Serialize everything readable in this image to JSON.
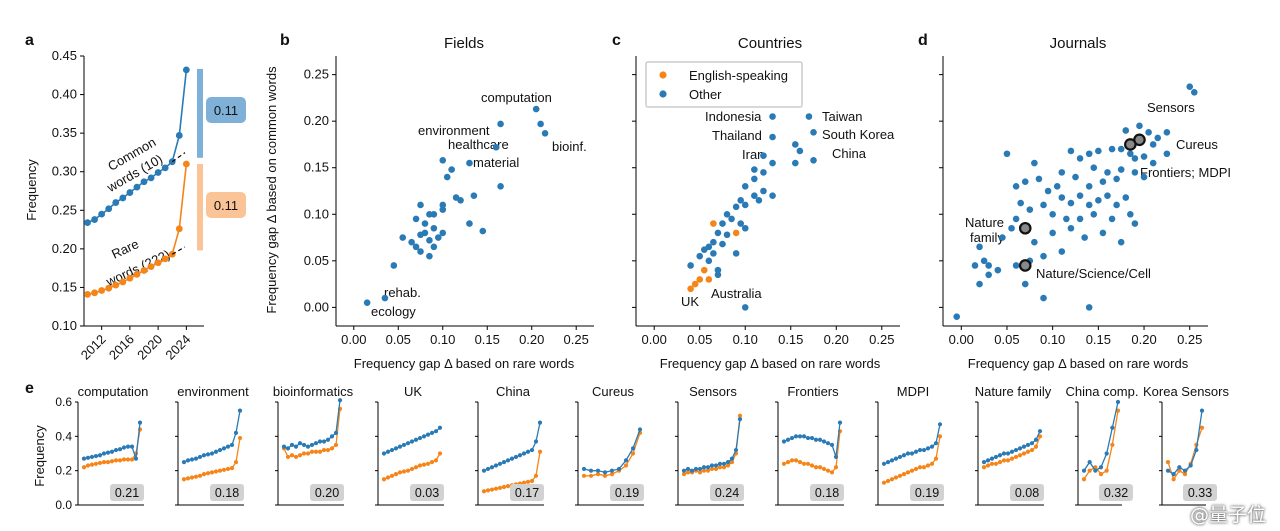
{
  "colors": {
    "rare": "#f58518",
    "common": "#2a7ab6",
    "label_bg": "#d2d2d2"
  },
  "panel_a": {
    "letter": "a",
    "ylabel": "Frequency",
    "yticks": [
      0.1,
      0.15,
      0.2,
      0.25,
      0.3,
      0.35,
      0.4,
      0.45
    ],
    "xticks": [
      "2012",
      "2016",
      "2020",
      "2024"
    ],
    "common_label_1": "Common",
    "common_label_2": "words (10)",
    "rare_label_1": "Rare",
    "rare_label_2": "words (222)",
    "common_gap": "0.11",
    "rare_gap": "0.11",
    "chart_data": {
      "type": "line",
      "x": [
        2010,
        2011,
        2012,
        2013,
        2014,
        2015,
        2016,
        2017,
        2018,
        2019,
        2020,
        2021,
        2022,
        2023,
        2024
      ],
      "series": [
        {
          "name": "Common words (10)",
          "values": [
            0.234,
            0.238,
            0.245,
            0.252,
            0.26,
            0.266,
            0.273,
            0.28,
            0.287,
            0.292,
            0.299,
            0.305,
            0.313,
            0.347,
            0.432
          ]
        },
        {
          "name": "Rare words (222)",
          "values": [
            0.141,
            0.143,
            0.146,
            0.149,
            0.153,
            0.157,
            0.162,
            0.167,
            0.172,
            0.177,
            0.182,
            0.187,
            0.193,
            0.226,
            0.31
          ]
        }
      ],
      "ylim": [
        0.1,
        0.45
      ]
    }
  },
  "scatter_common": {
    "ylabel": "Frequency gap Δ based on common words",
    "xlabel": "Frequency gap Δ based on rare words",
    "xticks": [
      "0.00",
      "0.05",
      "0.10",
      "0.15",
      "0.20",
      "0.25"
    ],
    "yticks": [
      "0.00",
      "0.05",
      "0.10",
      "0.15",
      "0.20",
      "0.25"
    ]
  },
  "panel_b": {
    "letter": "b",
    "title": "Fields",
    "annotations": [
      "computation",
      "environment",
      "healthcare",
      "material",
      "bioinf.",
      "rehab.",
      "ecology"
    ],
    "chart_data": {
      "type": "scatter",
      "xlim": [
        -0.02,
        0.27
      ],
      "ylim": [
        -0.02,
        0.27
      ],
      "points": [
        [
          0.205,
          0.213
        ],
        [
          0.21,
          0.197
        ],
        [
          0.215,
          0.187
        ],
        [
          0.165,
          0.197
        ],
        [
          0.16,
          0.172
        ],
        [
          0.13,
          0.155
        ],
        [
          0.1,
          0.158
        ],
        [
          0.11,
          0.148
        ],
        [
          0.105,
          0.14
        ],
        [
          0.165,
          0.13
        ],
        [
          0.135,
          0.12
        ],
        [
          0.115,
          0.118
        ],
        [
          0.12,
          0.115
        ],
        [
          0.1,
          0.11
        ],
        [
          0.09,
          0.1
        ],
        [
          0.075,
          0.11
        ],
        [
          0.085,
          0.1
        ],
        [
          0.1,
          0.105
        ],
        [
          0.08,
          0.09
        ],
        [
          0.07,
          0.095
        ],
        [
          0.08,
          0.08
        ],
        [
          0.09,
          0.085
        ],
        [
          0.1,
          0.08
        ],
        [
          0.13,
          0.09
        ],
        [
          0.145,
          0.082
        ],
        [
          0.095,
          0.075
        ],
        [
          0.085,
          0.072
        ],
        [
          0.075,
          0.078
        ],
        [
          0.09,
          0.065
        ],
        [
          0.07,
          0.065
        ],
        [
          0.065,
          0.07
        ],
        [
          0.055,
          0.075
        ],
        [
          0.075,
          0.06
        ],
        [
          0.085,
          0.055
        ],
        [
          0.045,
          0.045
        ],
        [
          0.035,
          0.01
        ],
        [
          0.015,
          0.005
        ]
      ]
    }
  },
  "panel_c": {
    "letter": "c",
    "title": "Countries",
    "legend": [
      "English-speaking",
      "Other"
    ],
    "annotations": [
      "Indonesia",
      "Taiwan",
      "Thailand",
      "South Korea",
      "Iran",
      "China",
      "UK",
      "Australia"
    ],
    "chart_data": {
      "type": "scatter",
      "xlim": [
        -0.02,
        0.27
      ],
      "ylim": [
        -0.02,
        0.27
      ],
      "series": [
        {
          "name": "English-speaking",
          "points": [
            [
              0.045,
              0.025
            ],
            [
              0.05,
              0.03
            ],
            [
              0.06,
              0.03
            ],
            [
              0.09,
              0.08
            ],
            [
              0.065,
              0.09
            ],
            [
              0.055,
              0.04
            ],
            [
              0.04,
              0.02
            ]
          ]
        },
        {
          "name": "Other",
          "points": [
            [
              0.13,
              0.205
            ],
            [
              0.17,
              0.205
            ],
            [
              0.175,
              0.188
            ],
            [
              0.13,
              0.183
            ],
            [
              0.155,
              0.175
            ],
            [
              0.16,
              0.168
            ],
            [
              0.175,
              0.158
            ],
            [
              0.155,
              0.155
            ],
            [
              0.12,
              0.163
            ],
            [
              0.13,
              0.155
            ],
            [
              0.11,
              0.148
            ],
            [
              0.12,
              0.145
            ],
            [
              0.11,
              0.138
            ],
            [
              0.1,
              0.13
            ],
            [
              0.12,
              0.125
            ],
            [
              0.13,
              0.12
            ],
            [
              0.11,
              0.12
            ],
            [
              0.095,
              0.115
            ],
            [
              0.115,
              0.115
            ],
            [
              0.1,
              0.11
            ],
            [
              0.09,
              0.108
            ],
            [
              0.08,
              0.1
            ],
            [
              0.085,
              0.095
            ],
            [
              0.095,
              0.09
            ],
            [
              0.075,
              0.09
            ],
            [
              0.1,
              0.085
            ],
            [
              0.07,
              0.08
            ],
            [
              0.08,
              0.078
            ],
            [
              0.065,
              0.07
            ],
            [
              0.075,
              0.068
            ],
            [
              0.06,
              0.065
            ],
            [
              0.055,
              0.062
            ],
            [
              0.065,
              0.058
            ],
            [
              0.05,
              0.055
            ],
            [
              0.09,
              0.058
            ],
            [
              0.06,
              0.05
            ],
            [
              0.04,
              0.045
            ],
            [
              0.07,
              0.04
            ],
            [
              0.07,
              0.035
            ],
            [
              0.1,
              0.0
            ]
          ]
        }
      ]
    }
  },
  "panel_d": {
    "letter": "d",
    "title": "Journals",
    "annotations": [
      "Sensors",
      "Cureus",
      "Frontiers; MDPI",
      "Nature",
      "family",
      "Nature/Science/Cell"
    ],
    "chart_data": {
      "type": "scatter",
      "xlim": [
        -0.02,
        0.27
      ],
      "ylim": [
        -0.02,
        0.27
      ],
      "highlighted": [
        [
          0.195,
          0.18
        ],
        [
          0.185,
          0.175
        ],
        [
          0.07,
          0.085
        ],
        [
          0.07,
          0.045
        ]
      ],
      "points": [
        [
          0.25,
          0.237
        ],
        [
          0.255,
          0.231
        ],
        [
          0.195,
          0.195
        ],
        [
          0.18,
          0.19
        ],
        [
          0.205,
          0.188
        ],
        [
          0.215,
          0.182
        ],
        [
          0.225,
          0.188
        ],
        [
          0.21,
          0.175
        ],
        [
          0.225,
          0.165
        ],
        [
          0.175,
          0.17
        ],
        [
          0.185,
          0.165
        ],
        [
          0.2,
          0.162
        ],
        [
          0.19,
          0.16
        ],
        [
          0.165,
          0.17
        ],
        [
          0.15,
          0.168
        ],
        [
          0.14,
          0.165
        ],
        [
          0.12,
          0.168
        ],
        [
          0.13,
          0.16
        ],
        [
          0.145,
          0.15
        ],
        [
          0.16,
          0.145
        ],
        [
          0.175,
          0.148
        ],
        [
          0.19,
          0.145
        ],
        [
          0.2,
          0.14
        ],
        [
          0.17,
          0.138
        ],
        [
          0.155,
          0.135
        ],
        [
          0.14,
          0.13
        ],
        [
          0.125,
          0.14
        ],
        [
          0.11,
          0.145
        ],
        [
          0.105,
          0.13
        ],
        [
          0.095,
          0.125
        ],
        [
          0.085,
          0.138
        ],
        [
          0.07,
          0.135
        ],
        [
          0.06,
          0.13
        ],
        [
          0.05,
          0.165
        ],
        [
          0.08,
          0.155
        ],
        [
          0.11,
          0.118
        ],
        [
          0.12,
          0.112
        ],
        [
          0.13,
          0.12
        ],
        [
          0.14,
          0.11
        ],
        [
          0.15,
          0.115
        ],
        [
          0.16,
          0.12
        ],
        [
          0.17,
          0.11
        ],
        [
          0.18,
          0.118
        ],
        [
          0.185,
          0.1
        ],
        [
          0.19,
          0.09
        ],
        [
          0.165,
          0.095
        ],
        [
          0.145,
          0.1
        ],
        [
          0.13,
          0.095
        ],
        [
          0.115,
          0.095
        ],
        [
          0.1,
          0.1
        ],
        [
          0.09,
          0.11
        ],
        [
          0.075,
          0.105
        ],
        [
          0.065,
          0.112
        ],
        [
          0.06,
          0.095
        ],
        [
          0.055,
          0.085
        ],
        [
          0.045,
          0.075
        ],
        [
          0.08,
          0.07
        ],
        [
          0.1,
          0.08
        ],
        [
          0.12,
          0.085
        ],
        [
          0.135,
          0.075
        ],
        [
          0.155,
          0.08
        ],
        [
          0.175,
          0.07
        ],
        [
          0.11,
          0.06
        ],
        [
          0.09,
          0.055
        ],
        [
          0.075,
          0.05
        ],
        [
          0.06,
          0.045
        ],
        [
          0.04,
          0.04
        ],
        [
          0.03,
          0.045
        ],
        [
          0.025,
          0.05
        ],
        [
          0.02,
          0.065
        ],
        [
          0.015,
          0.045
        ],
        [
          0.03,
          0.035
        ],
        [
          0.02,
          0.025
        ],
        [
          0.07,
          0.025
        ],
        [
          0.09,
          0.01
        ],
        [
          0.14,
          0.0
        ],
        [
          -0.005,
          -0.01
        ],
        [
          0.21,
          0.155
        ]
      ]
    }
  },
  "panel_e": {
    "letter": "e",
    "ylabel": "Frequency",
    "yticks": [
      "0.0",
      "0.2",
      "0.4",
      "0.6"
    ],
    "small_multiples": [
      {
        "title": "computation",
        "gap": "0.21",
        "common": [
          0.27,
          0.275,
          0.28,
          0.285,
          0.29,
          0.3,
          0.305,
          0.31,
          0.32,
          0.325,
          0.335,
          0.34,
          0.34,
          0.27,
          0.48
        ],
        "rare": [
          0.22,
          0.23,
          0.235,
          0.24,
          0.245,
          0.25,
          0.25,
          0.255,
          0.26,
          0.26,
          0.265,
          0.265,
          0.265,
          0.3,
          0.44
        ]
      },
      {
        "title": "environment",
        "gap": "0.18",
        "common": [
          0.25,
          0.26,
          0.265,
          0.27,
          0.28,
          0.29,
          0.295,
          0.3,
          0.31,
          0.32,
          0.33,
          0.34,
          0.35,
          0.42,
          0.55
        ],
        "rare": [
          0.15,
          0.155,
          0.16,
          0.165,
          0.17,
          0.18,
          0.185,
          0.19,
          0.195,
          0.2,
          0.205,
          0.21,
          0.215,
          0.25,
          0.39
        ]
      },
      {
        "title": "bioinformatics",
        "gap": "0.20",
        "common": [
          0.34,
          0.33,
          0.35,
          0.34,
          0.36,
          0.35,
          0.34,
          0.35,
          0.36,
          0.37,
          0.37,
          0.38,
          0.4,
          0.42,
          0.61
        ],
        "rare": [
          0.33,
          0.28,
          0.29,
          0.28,
          0.29,
          0.3,
          0.3,
          0.31,
          0.31,
          0.31,
          0.32,
          0.32,
          0.33,
          0.35,
          0.56
        ]
      },
      {
        "title": "UK",
        "gap": "0.03",
        "common": [
          0.3,
          0.31,
          0.32,
          0.33,
          0.34,
          0.35,
          0.36,
          0.37,
          0.38,
          0.39,
          0.4,
          0.41,
          0.42,
          0.43,
          0.45
        ],
        "rare": [
          0.15,
          0.16,
          0.17,
          0.18,
          0.19,
          0.195,
          0.2,
          0.21,
          0.22,
          0.23,
          0.235,
          0.24,
          0.25,
          0.26,
          0.3
        ]
      },
      {
        "title": "China",
        "gap": "0.17",
        "common": [
          0.2,
          0.21,
          0.22,
          0.23,
          0.24,
          0.25,
          0.26,
          0.27,
          0.28,
          0.29,
          0.3,
          0.31,
          0.32,
          0.37,
          0.48
        ],
        "rare": [
          0.08,
          0.085,
          0.09,
          0.095,
          0.1,
          0.105,
          0.11,
          0.115,
          0.12,
          0.125,
          0.13,
          0.135,
          0.14,
          0.17,
          0.31
        ]
      },
      {
        "title": "Cureus",
        "gap": "0.19",
        "common": [
          0.21,
          0.2,
          0.2,
          0.19,
          0.2,
          0.21,
          0.26,
          0.33,
          0.44
        ],
        "rare": [
          0.17,
          0.17,
          0.18,
          0.17,
          0.18,
          0.2,
          0.23,
          0.3,
          0.42
        ]
      },
      {
        "title": "Sensors",
        "gap": "0.24",
        "common": [
          0.2,
          0.21,
          0.2,
          0.21,
          0.21,
          0.22,
          0.22,
          0.23,
          0.23,
          0.24,
          0.24,
          0.25,
          0.27,
          0.32,
          0.5
        ],
        "rare": [
          0.18,
          0.19,
          0.19,
          0.2,
          0.19,
          0.2,
          0.2,
          0.21,
          0.21,
          0.22,
          0.22,
          0.23,
          0.25,
          0.3,
          0.52
        ]
      },
      {
        "title": "Frontiers",
        "gap": "0.18",
        "common": [
          0.37,
          0.38,
          0.39,
          0.4,
          0.4,
          0.4,
          0.39,
          0.39,
          0.38,
          0.38,
          0.37,
          0.36,
          0.35,
          0.28,
          0.48
        ],
        "rare": [
          0.24,
          0.25,
          0.26,
          0.26,
          0.25,
          0.24,
          0.24,
          0.23,
          0.22,
          0.22,
          0.21,
          0.2,
          0.19,
          0.22,
          0.43
        ]
      },
      {
        "title": "MDPI",
        "gap": "0.19",
        "common": [
          0.24,
          0.25,
          0.26,
          0.27,
          0.28,
          0.29,
          0.3,
          0.3,
          0.31,
          0.32,
          0.32,
          0.33,
          0.34,
          0.36,
          0.47
        ],
        "rare": [
          0.13,
          0.14,
          0.15,
          0.16,
          0.17,
          0.18,
          0.19,
          0.2,
          0.21,
          0.22,
          0.22,
          0.23,
          0.24,
          0.27,
          0.4
        ]
      },
      {
        "title": "Nature family",
        "gap": "0.08",
        "common": [
          0.25,
          0.26,
          0.27,
          0.28,
          0.29,
          0.3,
          0.3,
          0.31,
          0.32,
          0.33,
          0.34,
          0.35,
          0.36,
          0.38,
          0.43
        ],
        "rare": [
          0.22,
          0.23,
          0.24,
          0.24,
          0.25,
          0.26,
          0.26,
          0.27,
          0.28,
          0.29,
          0.3,
          0.31,
          0.32,
          0.34,
          0.4
        ]
      },
      {
        "title": "China comp.",
        "gap": "0.32",
        "common": [
          0.2,
          0.25,
          0.2,
          0.22,
          0.3,
          0.45,
          0.6
        ],
        "rare": [
          0.15,
          0.2,
          0.22,
          0.18,
          0.2,
          0.35,
          0.55
        ]
      },
      {
        "title": "Korea Sensors",
        "gap": "0.33",
        "common": [
          0.2,
          0.18,
          0.22,
          0.2,
          0.23,
          0.32,
          0.55
        ],
        "rare": [
          0.25,
          0.15,
          0.2,
          0.18,
          0.24,
          0.35,
          0.45
        ]
      }
    ]
  },
  "watermark": "@量子位"
}
